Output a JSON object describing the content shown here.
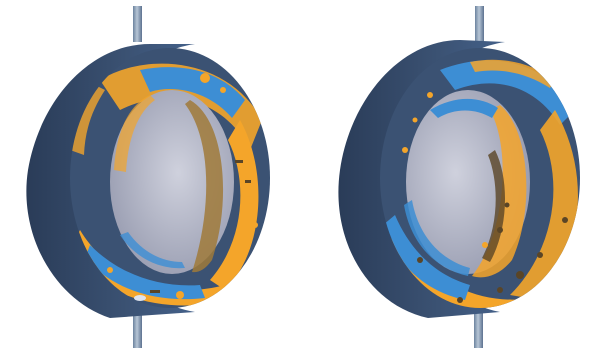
{
  "figure": {
    "panels": [
      {
        "id": "left",
        "name": "bearing-ring-left"
      },
      {
        "id": "right",
        "name": "bearing-ring-right"
      }
    ],
    "colors": {
      "background": "#ffffff",
      "shaft": "#7f95ad",
      "shaft_highlight": "#b7c6d6",
      "outer_surface": "#3b5273",
      "outer_surface_dark": "#2a3c58",
      "inner_bore": "#a9acbd",
      "inner_bore_light": "#c7c9d6",
      "accent_blue": "#3d8ed4",
      "accent_orange": "#f4a52a",
      "accent_brown": "#5a4526"
    }
  }
}
